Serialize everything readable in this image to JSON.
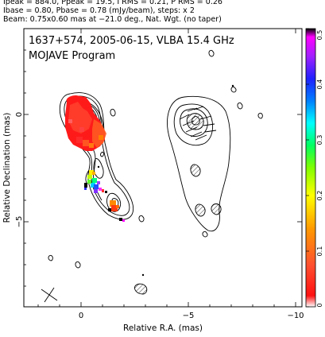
{
  "header": {
    "line1": "Ipeak = 884.0, Ppeak = 19.5, I RMS = 0.21, P RMS = 0.26",
    "line2": "Ibase = 0.80, Pbase = 0.78 (mJy/beam), steps: x 2",
    "line3": "Beam: 0.75x0.60 mas at −21.0 deg., Nat. Wgt. (no taper)"
  },
  "panel": {
    "title": "1637+574, 2005-06-15, VLBA 15.4 GHz",
    "subtitle": "MOJAVE Program"
  },
  "axes": {
    "xlabel": "Relative R.A. (mas)",
    "ylabel": "Relative Declination (mas)",
    "xticks": [
      "0",
      "−5",
      "−10"
    ],
    "yticks": [
      "0",
      "−5"
    ]
  },
  "colorbar": {
    "ticks": [
      "0",
      "0.1",
      "0.2",
      "0.3",
      "0.4",
      "0.5"
    ]
  },
  "colors": {
    "contour": "#000000",
    "frame": "#000000"
  }
}
